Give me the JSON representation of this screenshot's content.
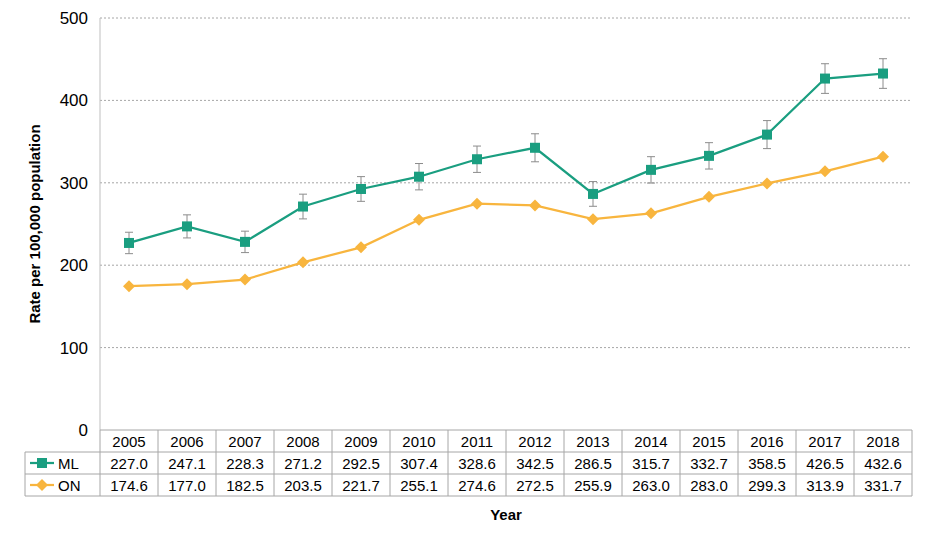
{
  "chart_data": {
    "type": "line",
    "x_label": "Year",
    "y_label": "Rate per 100,000 population",
    "categories": [
      "2005",
      "2006",
      "2007",
      "2008",
      "2009",
      "2010",
      "2011",
      "2012",
      "2013",
      "2014",
      "2015",
      "2016",
      "2017",
      "2018"
    ],
    "series": [
      {
        "name": "ML",
        "color": "#1a9e80",
        "marker": "square",
        "values": [
          227.0,
          247.1,
          228.3,
          271.2,
          292.5,
          307.4,
          328.6,
          342.5,
          286.5,
          315.7,
          332.7,
          358.5,
          426.5,
          432.6
        ],
        "value_labels": [
          "227.0",
          "247.1",
          "228.3",
          "271.2",
          "292.5",
          "307.4",
          "328.6",
          "342.5",
          "286.5",
          "315.7",
          "332.7",
          "358.5",
          "426.5",
          "432.6"
        ],
        "errors": [
          13,
          14,
          13,
          15,
          15,
          16,
          16,
          17,
          15,
          16,
          16,
          17,
          18,
          18
        ]
      },
      {
        "name": "ON",
        "color": "#f8b53e",
        "marker": "diamond",
        "values": [
          174.6,
          177.0,
          182.5,
          203.5,
          221.7,
          255.1,
          274.6,
          272.5,
          255.9,
          263.0,
          283.0,
          299.3,
          313.9,
          331.7
        ],
        "value_labels": [
          "174.6",
          "177.0",
          "182.5",
          "203.5",
          "221.7",
          "255.1",
          "274.6",
          "272.5",
          "255.9",
          "263.0",
          "283.0",
          "299.3",
          "313.9",
          "331.7"
        ]
      }
    ],
    "ylim": [
      0,
      500
    ],
    "yticks": [
      0,
      100,
      200,
      300,
      400,
      500
    ],
    "grid": true,
    "data_labels": true
  }
}
